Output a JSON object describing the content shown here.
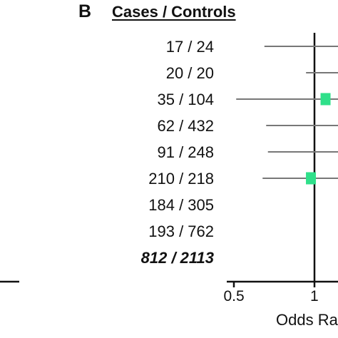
{
  "panel_letter": "B",
  "chart_data": {
    "type": "forest",
    "column_header": "Cases / Controls",
    "rows": [
      {
        "label": "17 / 24",
        "lower": 0.65
      },
      {
        "label": "20 / 20",
        "lower": 0.93
      },
      {
        "label": "35 / 104",
        "lower": 0.51,
        "estimate": 1.1
      },
      {
        "label": "62 / 432",
        "lower": 0.66
      },
      {
        "label": "91 / 248",
        "lower": 0.67
      },
      {
        "label": "210 / 218",
        "lower": 0.64,
        "estimate": 0.97
      },
      {
        "label": "184 / 305"
      },
      {
        "label": "193 / 762"
      },
      {
        "label": "812 / 2113",
        "total": true
      }
    ],
    "x_ticks": [
      {
        "value": 0.5,
        "label": "0.5"
      },
      {
        "value": 1,
        "label": "1"
      }
    ],
    "reference_line": 1,
    "xlabel": "Odds Ratio",
    "xscale": "log",
    "marker_color": "#2fe08a"
  }
}
